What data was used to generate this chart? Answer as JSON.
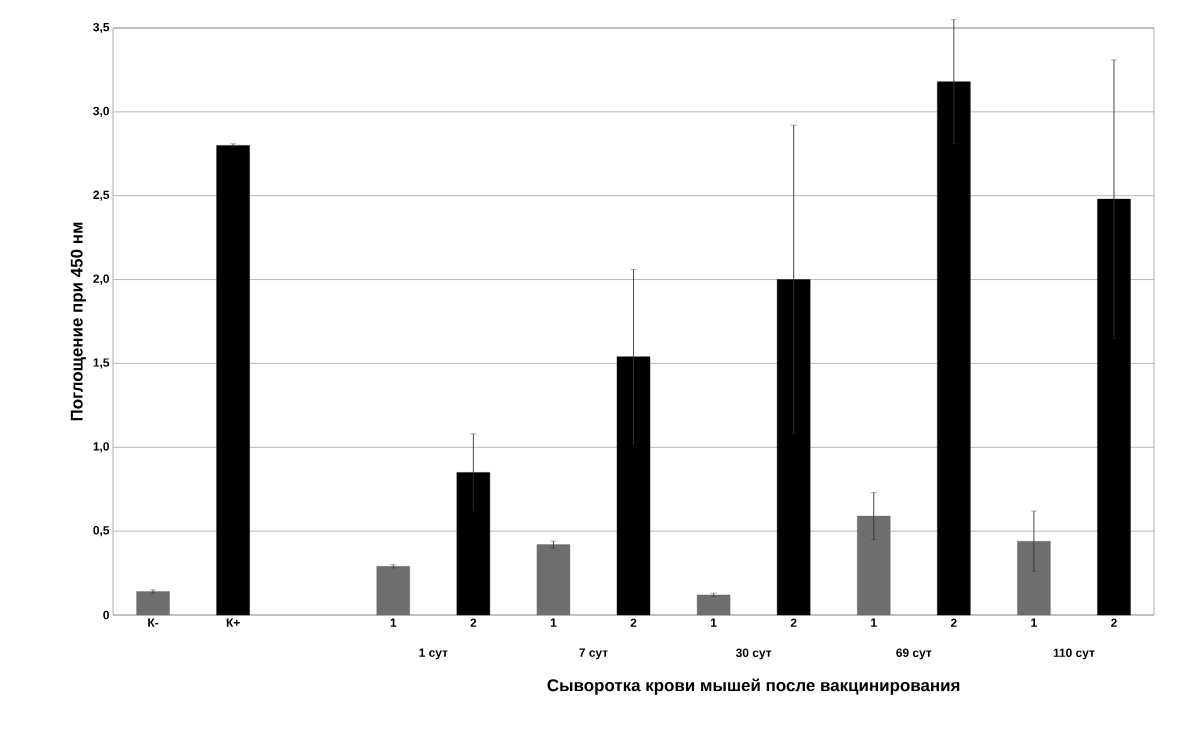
{
  "chart_data": {
    "type": "bar",
    "xlabel": "Сыворотка крови мышей после вакцинирования",
    "ylabel": "Поглощение при 450 нм",
    "categories": [
      "К-",
      "К+",
      null,
      "1",
      "2",
      "1",
      "2",
      "1",
      "2",
      "1",
      "2",
      "1",
      "2"
    ],
    "values": [
      0.14,
      2.8,
      null,
      0.29,
      0.85,
      0.42,
      1.54,
      0.12,
      2.0,
      0.59,
      3.18,
      0.44,
      2.48
    ],
    "errors": [
      0.01,
      0.01,
      null,
      0.01,
      0.23,
      0.02,
      0.52,
      0.01,
      0.92,
      0.14,
      0.37,
      0.18,
      0.83
    ],
    "colors": [
      "#6e6e6e",
      "#000000",
      null,
      "#6e6e6e",
      "#000000",
      "#6e6e6e",
      "#000000",
      "#6e6e6e",
      "#000000",
      "#6e6e6e",
      "#000000",
      "#6e6e6e",
      "#000000"
    ],
    "ylim": [
      0,
      3.5
    ],
    "yticks": [
      0,
      {
        "value": 0.5,
        "label": "0,5"
      },
      {
        "value": 1,
        "label": "1,0"
      },
      {
        "value": 1.5,
        "label": "1,5"
      },
      {
        "value": 2,
        "label": "2,0"
      },
      {
        "value": 2.5,
        "label": "2,5"
      },
      {
        "value": 3,
        "label": "3,0"
      },
      {
        "value": 3.5,
        "label": "3,5"
      }
    ],
    "grid": "y",
    "annotations": [
      "1 сут",
      "7 сут",
      "30 сут",
      "69 сут",
      "110 сут"
    ]
  }
}
